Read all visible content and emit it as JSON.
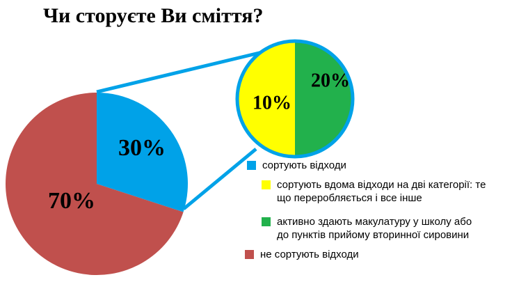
{
  "chart_data": [
    {
      "type": "pie",
      "title": "Чи сторуєте Ви сміття?",
      "slices": [
        {
          "label": "сортують відходи",
          "value": 30,
          "value_label": "30%",
          "color": "#00a2e8"
        },
        {
          "label": "не сортують відходи",
          "value": 70,
          "value_label": "70%",
          "color": "#c0504d"
        }
      ]
    },
    {
      "type": "pie",
      "title": "",
      "breakdown_of": "сортують відходи",
      "slices": [
        {
          "label": "сортують вдома відходи на дві категорії: те\nщо переробляється і все інше",
          "value": 10,
          "value_label": "10%",
          "color": "#ffff00"
        },
        {
          "label": "активно здають макулатуру у школу або\nдо пунктів прийому вторинної сировини",
          "value": 20,
          "value_label": "20%",
          "color": "#22b14c"
        }
      ]
    }
  ],
  "legend": {
    "placement": "bottom-right",
    "items": [
      {
        "label": "сортують відходи",
        "color": "#00a2e8"
      },
      {
        "label": "сортують вдома відходи на дві категорії: те\nщо переробляється і все інше",
        "color": "#ffff00"
      },
      {
        "label": "активно здають макулатуру у школу або\nдо пунктів прийому вторинної сировини",
        "color": "#22b14c"
      },
      {
        "label": "не сортують відходи",
        "color": "#c0504d"
      }
    ]
  },
  "colors": {
    "connector": "#00a2e8",
    "zoom_ring": "#00a2e8"
  }
}
